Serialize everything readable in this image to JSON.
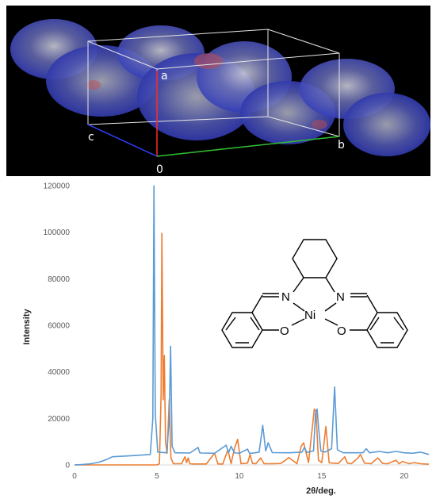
{
  "crystal_image": {
    "axis_labels": {
      "a": "a",
      "b": "b",
      "c": "c",
      "origin": "0"
    },
    "colors": {
      "background": "#000000",
      "surface": "#2b35b8",
      "highlight": "#c9c9d6",
      "axis_a": "#ff2a2a",
      "axis_b": "#2fbf2f",
      "axis_c": "#2a3cff"
    }
  },
  "molecule": {
    "atoms": {
      "n_left": "N",
      "n_right": "N",
      "ni": "Ni",
      "o_left": "O",
      "o_right": "O"
    }
  },
  "chart_data": {
    "type": "line",
    "title": "",
    "xlabel": "2θ/deg.",
    "ylabel": "Intensity",
    "xlim": [
      0,
      21.5
    ],
    "ylim": [
      0,
      120000
    ],
    "xticks": [
      0,
      5,
      10,
      15,
      20
    ],
    "yticks": [
      0,
      20000,
      40000,
      60000,
      80000,
      100000,
      120000
    ],
    "grid": false,
    "legend": "none",
    "series": [
      {
        "color": "#5b9bd5",
        "x": [
          0,
          0.5,
          1.0,
          1.5,
          2.0,
          2.3,
          3.0,
          4.0,
          4.6,
          4.75,
          4.82,
          4.9,
          5.05,
          5.6,
          5.75,
          5.83,
          5.92,
          6.1,
          7.0,
          7.5,
          7.6,
          7.7,
          8.5,
          9.2,
          9.35,
          9.5,
          9.7,
          9.85,
          10.0,
          10.5,
          10.62,
          10.75,
          11.2,
          11.42,
          11.6,
          11.75,
          12.0,
          13.0,
          13.8,
          13.95,
          14.1,
          14.5,
          14.62,
          14.72,
          14.82,
          14.95,
          15.2,
          15.6,
          15.78,
          15.95,
          16.3,
          17.5,
          17.7,
          17.9,
          18.5,
          19.0,
          19.5,
          20.0,
          20.5,
          21.0,
          21.5
        ],
        "values": [
          0,
          200,
          500,
          1200,
          2500,
          3500,
          3800,
          4200,
          4500,
          20000,
          120000,
          22000,
          5500,
          5200,
          20000,
          51000,
          8000,
          5200,
          5100,
          7500,
          5200,
          5100,
          5000,
          8500,
          5200,
          8000,
          5200,
          5100,
          5000,
          6800,
          5000,
          5000,
          5500,
          17000,
          6000,
          9500,
          5300,
          5200,
          5500,
          7500,
          5400,
          6000,
          22000,
          24000,
          15000,
          6000,
          5500,
          7000,
          33500,
          6500,
          5200,
          5200,
          7000,
          5200,
          5800,
          5200,
          5800,
          5200,
          5000,
          5500,
          4500
        ]
      },
      {
        "color": "#ed7d31",
        "x": [
          0,
          4.8,
          5.0,
          5.15,
          5.25,
          5.3,
          5.38,
          5.45,
          5.52,
          5.62,
          5.75,
          5.85,
          6.0,
          6.5,
          6.7,
          6.8,
          6.9,
          7.0,
          7.2,
          8.0,
          8.5,
          8.7,
          9.0,
          9.3,
          9.5,
          9.7,
          9.9,
          10.1,
          10.5,
          10.65,
          10.8,
          11.0,
          11.3,
          11.5,
          12.0,
          12.5,
          12.8,
          13.0,
          13.5,
          13.75,
          13.9,
          14.2,
          14.55,
          14.65,
          14.8,
          15.0,
          15.25,
          15.45,
          15.6,
          16.0,
          16.4,
          16.55,
          16.8,
          17.2,
          17.35,
          17.6,
          18.0,
          18.4,
          18.7,
          19.0,
          19.5,
          19.7,
          19.9,
          20.3,
          20.6,
          21.0,
          21.5
        ],
        "values": [
          0,
          0,
          0,
          500,
          30000,
          99500,
          28000,
          47000,
          10000,
          5000,
          28000,
          3000,
          500,
          500,
          3500,
          1000,
          3000,
          500,
          400,
          400,
          5000,
          400,
          400,
          6500,
          500,
          7000,
          11000,
          500,
          800,
          4500,
          600,
          500,
          3000,
          500,
          500,
          600,
          2000,
          3200,
          500,
          8000,
          9500,
          1000,
          24000,
          23000,
          2000,
          1000,
          16500,
          1000,
          800,
          600,
          3500,
          800,
          500,
          3000,
          4500,
          800,
          500,
          3000,
          600,
          500,
          2000,
          500,
          1500,
          500,
          1000,
          500,
          300
        ]
      }
    ]
  }
}
